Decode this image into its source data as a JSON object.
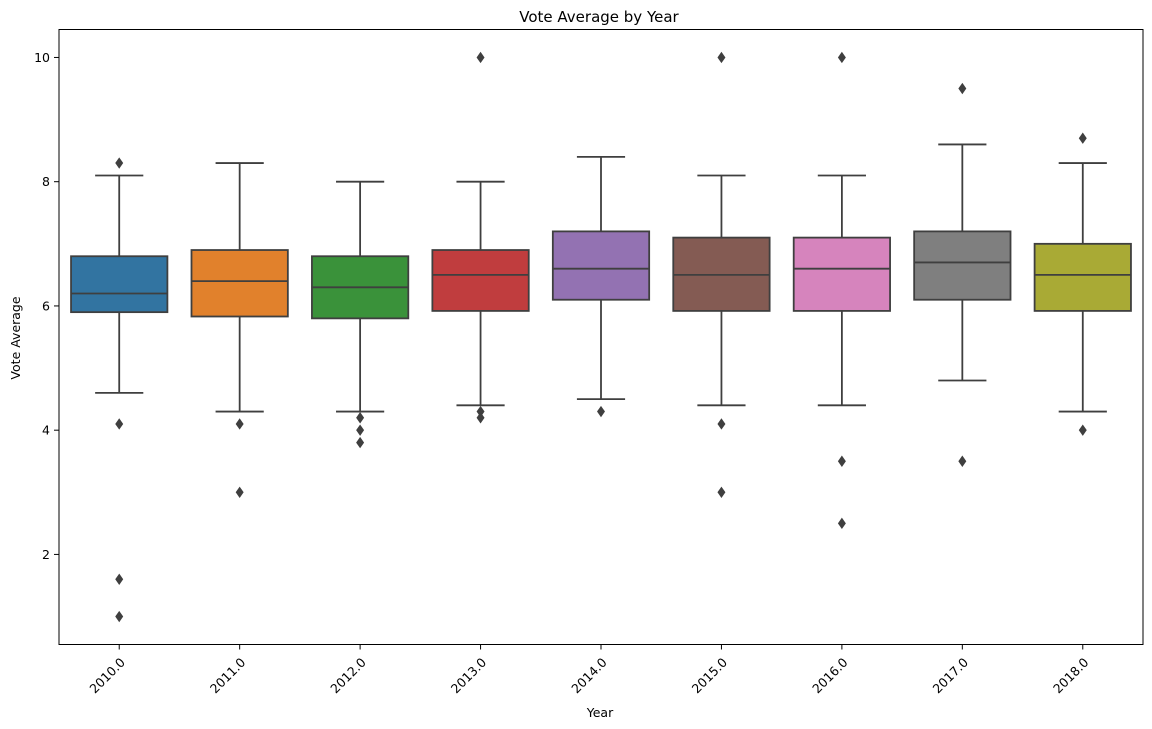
{
  "chart_data": {
    "type": "box",
    "title": "Vote Average by Year",
    "xlabel": "Year",
    "ylabel": "Vote Average",
    "ylim": [
      0.55,
      10.45
    ],
    "yticks": [
      2,
      4,
      6,
      8,
      10
    ],
    "categories": [
      "2010.0",
      "2011.0",
      "2012.0",
      "2013.0",
      "2014.0",
      "2015.0",
      "2016.0",
      "2017.0",
      "2018.0"
    ],
    "series": [
      {
        "whisker_low": 4.6,
        "q1": 5.9,
        "median": 6.2,
        "q3": 6.8,
        "whisker_high": 8.1,
        "outliers": [
          8.3,
          4.1,
          1.6,
          1.0
        ],
        "color": "#3274a1"
      },
      {
        "whisker_low": 4.3,
        "q1": 5.83,
        "median": 6.4,
        "q3": 6.9,
        "whisker_high": 8.3,
        "outliers": [
          4.1,
          3.0
        ],
        "color": "#e1812c"
      },
      {
        "whisker_low": 4.3,
        "q1": 5.8,
        "median": 6.3,
        "q3": 6.8,
        "whisker_high": 8.0,
        "outliers": [
          4.2,
          4.0,
          3.8
        ],
        "color": "#3a923a"
      },
      {
        "whisker_low": 4.4,
        "q1": 5.92,
        "median": 6.5,
        "q3": 6.9,
        "whisker_high": 8.0,
        "outliers": [
          10.0,
          4.3,
          4.2
        ],
        "color": "#c03d3e"
      },
      {
        "whisker_low": 4.5,
        "q1": 6.1,
        "median": 6.6,
        "q3": 7.2,
        "whisker_high": 8.4,
        "outliers": [
          4.3
        ],
        "color": "#9372b2"
      },
      {
        "whisker_low": 4.4,
        "q1": 5.92,
        "median": 6.5,
        "q3": 7.1,
        "whisker_high": 8.1,
        "outliers": [
          10.0,
          4.1,
          3.0
        ],
        "color": "#845b53"
      },
      {
        "whisker_low": 4.4,
        "q1": 5.92,
        "median": 6.6,
        "q3": 7.1,
        "whisker_high": 8.1,
        "outliers": [
          10.0,
          3.5,
          2.5
        ],
        "color": "#d684bd"
      },
      {
        "whisker_low": 4.8,
        "q1": 6.1,
        "median": 6.7,
        "q3": 7.2,
        "whisker_high": 8.6,
        "outliers": [
          9.5,
          3.5
        ],
        "color": "#7f7f7f"
      },
      {
        "whisker_low": 4.3,
        "q1": 5.92,
        "median": 6.5,
        "q3": 7.0,
        "whisker_high": 8.3,
        "outliers": [
          8.7,
          4.0
        ],
        "color": "#a9aa35"
      }
    ],
    "line_color": "#3f3f3f",
    "grid": false,
    "legend": "none"
  }
}
